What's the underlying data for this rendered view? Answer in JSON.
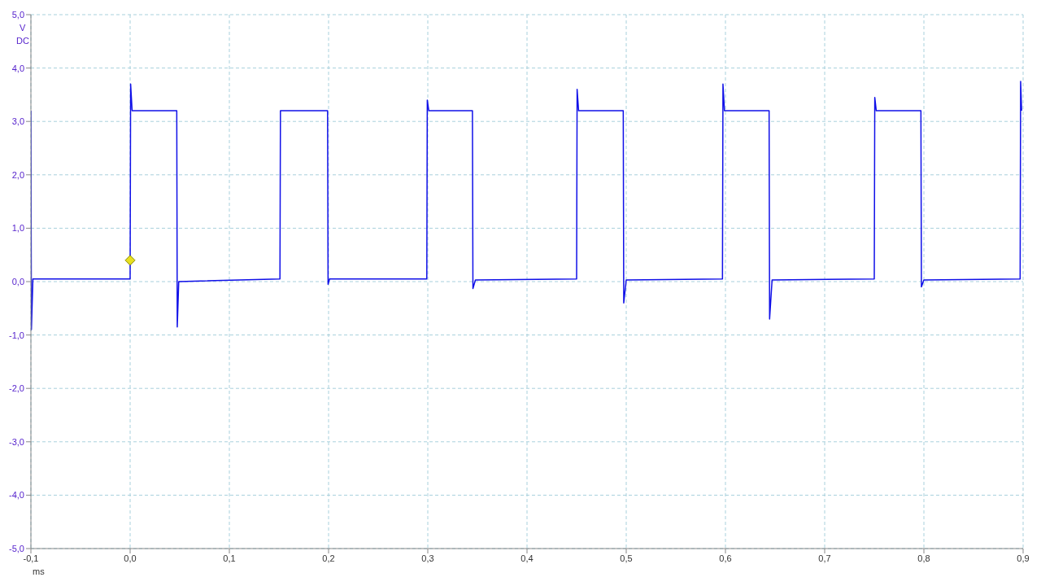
{
  "chart_data": {
    "type": "line",
    "xlabel": "ms",
    "ylabel": "V",
    "annotations": [
      "DC"
    ],
    "series": [
      {
        "color": "#1010e8",
        "x": [
          -0.1,
          -0.0995,
          -0.098,
          -0.002,
          0.0,
          0.0005,
          0.002,
          0.047,
          0.0475,
          0.049,
          0.151,
          0.1515,
          0.199,
          0.1995,
          0.201,
          0.299,
          0.2995,
          0.301,
          0.345,
          0.3455,
          0.348,
          0.45,
          0.4505,
          0.452,
          0.497,
          0.4975,
          0.5,
          0.597,
          0.5975,
          0.599,
          0.644,
          0.6445,
          0.647,
          0.75,
          0.7505,
          0.752,
          0.797,
          0.7975,
          0.8,
          0.897,
          0.8975,
          0.8985
        ],
        "values": [
          3.2,
          -0.9,
          0.05,
          0.05,
          0.05,
          3.7,
          3.2,
          3.2,
          -0.85,
          0.0,
          0.05,
          3.2,
          3.2,
          -0.05,
          0.05,
          0.05,
          3.4,
          3.2,
          3.2,
          -0.13,
          0.03,
          0.05,
          3.6,
          3.2,
          3.2,
          -0.4,
          0.03,
          0.05,
          3.7,
          3.2,
          3.2,
          -0.7,
          0.03,
          0.05,
          3.45,
          3.2,
          3.2,
          -0.1,
          0.03,
          0.05,
          3.75,
          3.2
        ]
      }
    ],
    "xlim": [
      -0.1,
      0.9
    ],
    "xticks": [
      {
        "value": -0.1,
        "label": "-0,1"
      },
      {
        "value": 0,
        "label": "0,0"
      },
      {
        "value": 0.1,
        "label": "0,1"
      },
      {
        "value": 0.2,
        "label": "0,2"
      },
      {
        "value": 0.3,
        "label": "0,3"
      },
      {
        "value": 0.4,
        "label": "0,4"
      },
      {
        "value": 0.5,
        "label": "0,5"
      },
      {
        "value": 0.6,
        "label": "0,6"
      },
      {
        "value": 0.7,
        "label": "0,7"
      },
      {
        "value": 0.8,
        "label": "0,8"
      },
      {
        "value": 0.9,
        "label": "0,9"
      }
    ],
    "ylim": [
      -5,
      5
    ],
    "yticks": [
      {
        "value": -5,
        "label": "-5,0"
      },
      {
        "value": -4,
        "label": "-4,0"
      },
      {
        "value": -3,
        "label": "-3,0"
      },
      {
        "value": -2,
        "label": "-2,0"
      },
      {
        "value": -1,
        "label": "-1,0"
      },
      {
        "value": 0,
        "label": "0,0"
      },
      {
        "value": 1,
        "label": "1,0"
      },
      {
        "value": 2,
        "label": "2,0"
      },
      {
        "value": 3,
        "label": "3,0"
      },
      {
        "value": 4,
        "label": "4,0"
      },
      {
        "value": 5,
        "label": "5,0"
      }
    ],
    "grid": true,
    "marker": "none",
    "line_style": "solid"
  }
}
